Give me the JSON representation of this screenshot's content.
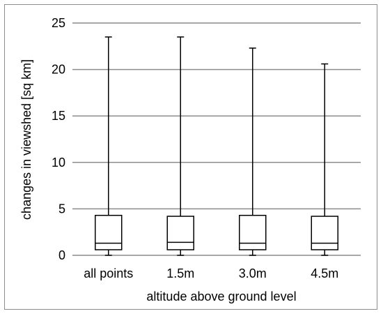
{
  "chart_data": {
    "type": "boxplot",
    "title": "",
    "xlabel": "altitude above ground level",
    "ylabel": "changes in viewshed [sq km]",
    "ylim": [
      0,
      25
    ],
    "yticks": [
      0,
      5,
      10,
      15,
      20,
      25
    ],
    "grid": "horizontal",
    "categories": [
      "all points",
      "1.5m",
      "3.0m",
      "4.5m"
    ],
    "boxes": [
      {
        "category": "all points",
        "min": 0.0,
        "q1": 0.6,
        "median": 1.3,
        "q3": 4.3,
        "max": 23.5
      },
      {
        "category": "1.5m",
        "min": 0.0,
        "q1": 0.6,
        "median": 1.4,
        "q3": 4.2,
        "max": 23.5
      },
      {
        "category": "3.0m",
        "min": 0.0,
        "q1": 0.6,
        "median": 1.3,
        "q3": 4.3,
        "max": 22.3
      },
      {
        "category": "4.5m",
        "min": 0.0,
        "q1": 0.6,
        "median": 1.3,
        "q3": 4.2,
        "max": 20.6
      }
    ],
    "colors": {
      "box_fill": "#ffffff",
      "stroke": "#000000",
      "grid": "#8c8c8c"
    }
  }
}
